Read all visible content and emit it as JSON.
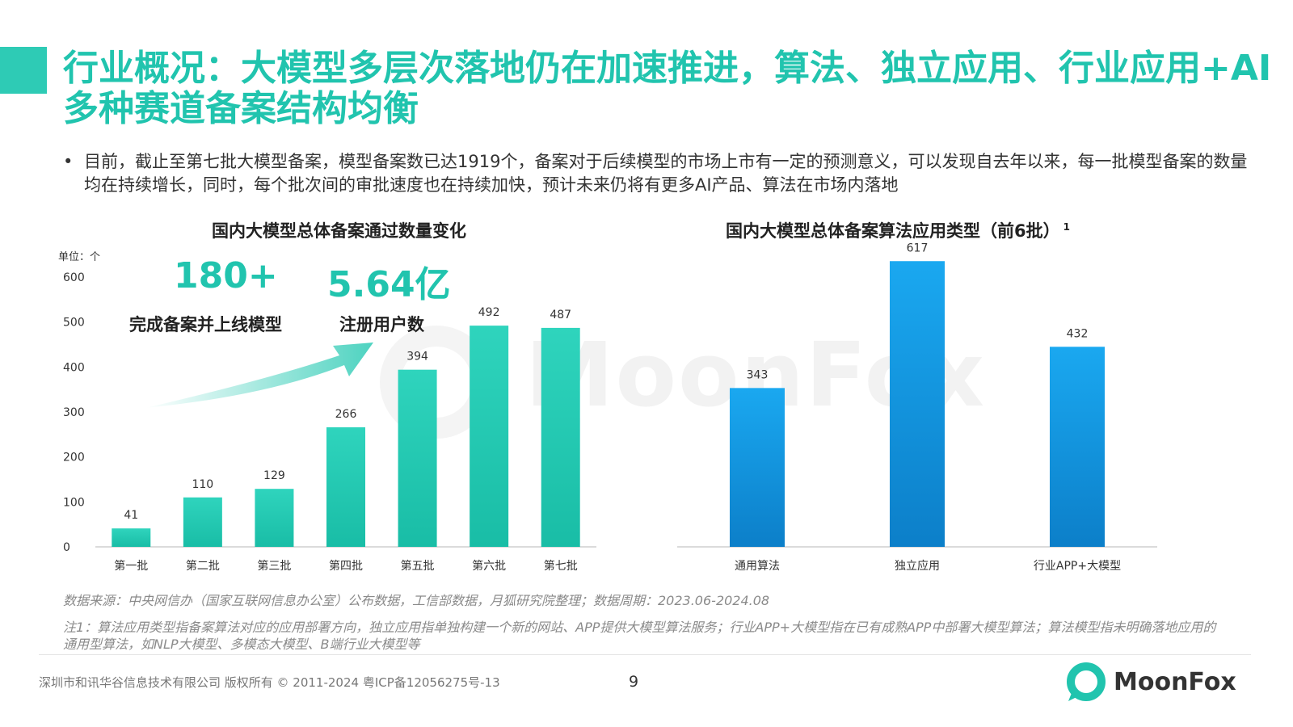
{
  "title": "行业概况：大模型多层次落地仍在加速推进，算法、独立应用、行业应用+AI多种赛道备案结构均衡",
  "bullet": "目前，截止至第七批大模型备案，模型备案数已达1919个，备案对于后续模型的市场上市有一定的预测意义，可以发现自去年以来，每一批模型备案的数量均在持续增长，同时，每个批次间的审批速度也在持续加快，预计未来仍将有更多AI产品、算法在市场内落地",
  "highlights": [
    {
      "value": "180+",
      "label": "完成备案并上线模型"
    },
    {
      "value": "5.64亿",
      "label": "注册用户数"
    }
  ],
  "watermark_text": "MoonFox",
  "colors": {
    "accent": "#21c4ae",
    "bar_teal": "#2ecbb5",
    "bar_blue": "#1a9be6"
  },
  "chart_data": [
    {
      "type": "bar",
      "title": "国内大模型总体备案通过数量变化",
      "unit": "单位：个",
      "categories": [
        "第一批",
        "第二批",
        "第三批",
        "第四批",
        "第五批",
        "第六批",
        "第七批"
      ],
      "values": [
        41,
        110,
        129,
        266,
        394,
        492,
        487
      ],
      "yticks": [
        0,
        100,
        200,
        300,
        400,
        500,
        600
      ],
      "ylim": [
        0,
        600
      ],
      "grid": false
    },
    {
      "type": "bar",
      "title": "国内大模型总体备案算法应用类型（前6批）",
      "title_sup": "1",
      "categories": [
        "通用算法",
        "独立应用",
        "行业APP+大模型"
      ],
      "values": [
        343,
        617,
        432
      ],
      "ylim": [
        0,
        600
      ],
      "grid": false
    }
  ],
  "source": "数据来源：中央网信办（国家互联网信息办公室）公布数据，工信部数据，月狐研究院整理；数据周期：2023.06-2024.08",
  "note": "注1：算法应用类型指备案算法对应的应用部署方向，独立应用指单独构建一个新的网站、APP提供大模型算法服务；行业APP+大模型指在已有成熟APP中部署大模型算法；算法模型指未明确落地应用的通用型算法，如NLP大模型、多模态大模型、B端行业大模型等",
  "footer": {
    "copyright": "深圳市和讯华谷信息技术有限公司 版权所有 © 2011-2024 粤ICP备12056275号-13",
    "page": "9",
    "logo_text": "MoonFox"
  }
}
